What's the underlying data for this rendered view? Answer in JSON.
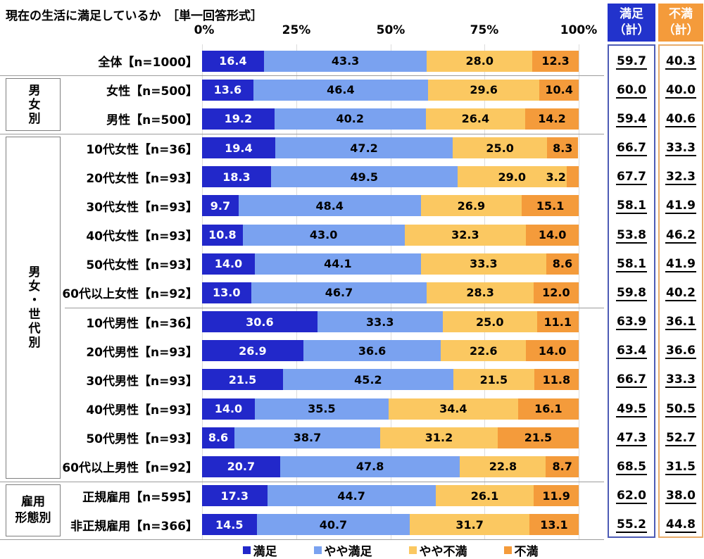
{
  "title": "現在の生活に満足しているか　［単一回答形式］",
  "axis_ticks": [
    "0%",
    "25%",
    "50%",
    "75%",
    "100%"
  ],
  "legend": {
    "items": [
      {
        "label": "満足",
        "color": "#2228CA"
      },
      {
        "label": "やや満足",
        "color": "#7AA2F0"
      },
      {
        "label": "やや不満",
        "color": "#FBC861"
      },
      {
        "label": "不満",
        "color": "#F49B3B"
      }
    ]
  },
  "summary": {
    "satisfied_header": "満足\n（計）",
    "dissatisfied_header": "不満\n（計）",
    "satisfied_header_color": "#2233CC",
    "dissatisfied_header_color": "#F49B3B",
    "satisfied_border_color": "#4C5BB5",
    "dissatisfied_border_color": "#E8AC6B"
  },
  "groups": [
    {
      "label": "男女別"
    },
    {
      "label": "男女・世代別"
    },
    {
      "label": "雇用\n形態別"
    }
  ],
  "chart_data": {
    "type": "bar",
    "stacked": true,
    "orientation": "horizontal",
    "title": "現在の生活に満足しているか［単一回答形式］",
    "series_names": [
      "満足",
      "やや満足",
      "やや不満",
      "不満"
    ],
    "x_ticks": [
      "0%",
      "25%",
      "50%",
      "75%",
      "100%"
    ],
    "xlim": [
      0,
      100
    ],
    "grid": true,
    "legend_position": "bottom",
    "summary_column_headers": [
      "満足（計）",
      "不満（計）"
    ],
    "rows": [
      {
        "group": "全体",
        "label": "全体【n=1000】",
        "values": [
          "16.4",
          "43.3",
          "28.0",
          "12.3"
        ],
        "satisfied_total": "59.7",
        "dissatisfied_total": "40.3"
      },
      {
        "group": "男女別",
        "label": "女性【n=500】",
        "values": [
          "13.6",
          "46.4",
          "29.6",
          "10.4"
        ],
        "satisfied_total": "60.0",
        "dissatisfied_total": "40.0"
      },
      {
        "group": "男女別",
        "label": "男性【n=500】",
        "values": [
          "19.2",
          "40.2",
          "26.4",
          "14.2"
        ],
        "satisfied_total": "59.4",
        "dissatisfied_total": "40.6"
      },
      {
        "group": "男女・世代別",
        "label": "10代女性【n=36】",
        "values": [
          "19.4",
          "47.2",
          "25.0",
          "8.3"
        ],
        "satisfied_total": "66.7",
        "dissatisfied_total": "33.3"
      },
      {
        "group": "男女・世代別",
        "label": "20代女性【n=93】",
        "values": [
          "18.3",
          "49.5",
          "29.0",
          "3.2"
        ],
        "satisfied_total": "67.7",
        "dissatisfied_total": "32.3"
      },
      {
        "group": "男女・世代別",
        "label": "30代女性【n=93】",
        "values": [
          "9.7",
          "48.4",
          "26.9",
          "15.1"
        ],
        "satisfied_total": "58.1",
        "dissatisfied_total": "41.9"
      },
      {
        "group": "男女・世代別",
        "label": "40代女性【n=93】",
        "values": [
          "10.8",
          "43.0",
          "32.3",
          "14.0"
        ],
        "satisfied_total": "53.8",
        "dissatisfied_total": "46.2"
      },
      {
        "group": "男女・世代別",
        "label": "50代女性【n=93】",
        "values": [
          "14.0",
          "44.1",
          "33.3",
          "8.6"
        ],
        "satisfied_total": "58.1",
        "dissatisfied_total": "41.9"
      },
      {
        "group": "男女・世代別",
        "label": "60代以上女性【n=92】",
        "values": [
          "13.0",
          "46.7",
          "28.3",
          "12.0"
        ],
        "satisfied_total": "59.8",
        "dissatisfied_total": "40.2"
      },
      {
        "group": "男女・世代別",
        "label": "10代男性【n=36】",
        "values": [
          "30.6",
          "33.3",
          "25.0",
          "11.1"
        ],
        "satisfied_total": "63.9",
        "dissatisfied_total": "36.1"
      },
      {
        "group": "男女・世代別",
        "label": "20代男性【n=93】",
        "values": [
          "26.9",
          "36.6",
          "22.6",
          "14.0"
        ],
        "satisfied_total": "63.4",
        "dissatisfied_total": "36.6"
      },
      {
        "group": "男女・世代別",
        "label": "30代男性【n=93】",
        "values": [
          "21.5",
          "45.2",
          "21.5",
          "11.8"
        ],
        "satisfied_total": "66.7",
        "dissatisfied_total": "33.3"
      },
      {
        "group": "男女・世代別",
        "label": "40代男性【n=93】",
        "values": [
          "14.0",
          "35.5",
          "34.4",
          "16.1"
        ],
        "satisfied_total": "49.5",
        "dissatisfied_total": "50.5"
      },
      {
        "group": "男女・世代別",
        "label": "50代男性【n=93】",
        "values": [
          "8.6",
          "38.7",
          "31.2",
          "21.5"
        ],
        "satisfied_total": "47.3",
        "dissatisfied_total": "52.7"
      },
      {
        "group": "男女・世代別",
        "label": "60代以上男性【n=92】",
        "values": [
          "20.7",
          "47.8",
          "22.8",
          "8.7"
        ],
        "satisfied_total": "68.5",
        "dissatisfied_total": "31.5"
      },
      {
        "group": "雇用形態別",
        "label": "正規雇用【n=595】",
        "values": [
          "17.3",
          "44.7",
          "26.1",
          "11.9"
        ],
        "satisfied_total": "62.0",
        "dissatisfied_total": "38.0"
      },
      {
        "group": "雇用形態別",
        "label": "非正規雇用【n=366】",
        "values": [
          "14.5",
          "40.7",
          "31.7",
          "13.1"
        ],
        "satisfied_total": "55.2",
        "dissatisfied_total": "44.8"
      }
    ]
  }
}
